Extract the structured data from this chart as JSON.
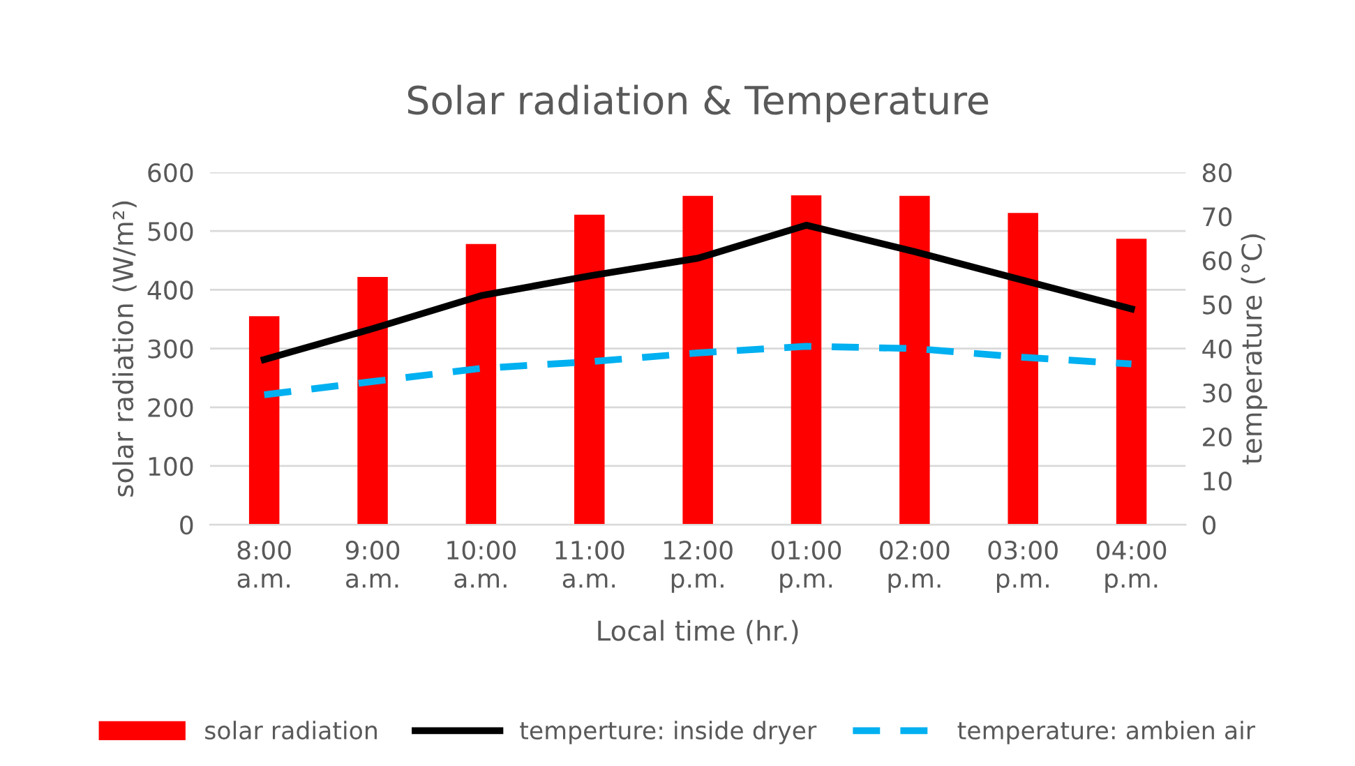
{
  "chart_data": {
    "type": "bar",
    "title": "Solar radiation & Temperature",
    "xlabel": "Local time (hr.)",
    "ylabel": "solar radiation (W/m²)",
    "y2label": "temperature (°C)",
    "categories": [
      "8:00\na.m.",
      "9:00\na.m.",
      "10:00\na.m.",
      "11:00\na.m.",
      "12:00\np.m.",
      "01:00\np.m.",
      "02:00\np.m.",
      "03:00\np.m.",
      "04:00\np.m."
    ],
    "series": [
      {
        "name": "solar radiation",
        "color": "#ff0000",
        "values": [
          355,
          422,
          478,
          528,
          560,
          561,
          560,
          531,
          487
        ]
      },
      {
        "name": "temperture: inside dryer",
        "type": "line",
        "axis": "y2",
        "color": "#000000",
        "line_style": "solid",
        "values": [
          37.5,
          44.5,
          52,
          56.5,
          60.5,
          68,
          62,
          55.5,
          49
        ]
      },
      {
        "name": "temperature: ambien air",
        "type": "line",
        "axis": "y2",
        "color": "#00b0f0",
        "line_style": "dashed",
        "values": [
          29.5,
          32.5,
          35.5,
          37,
          39,
          40.5,
          40,
          38,
          36.5
        ]
      }
    ],
    "ylim": [
      0,
      600
    ],
    "yticks": [
      0,
      100,
      200,
      300,
      400,
      500,
      600
    ],
    "y2lim": [
      0,
      80
    ],
    "y2ticks": [
      0,
      10,
      20,
      30,
      40,
      50,
      60,
      70,
      80
    ],
    "grid": "y",
    "legend": "bottom"
  }
}
